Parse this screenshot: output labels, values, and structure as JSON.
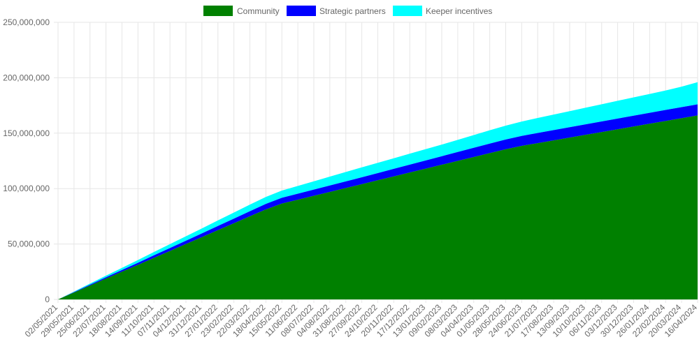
{
  "chart_data": {
    "type": "area",
    "stacked": true,
    "legend_position": "top-center",
    "grid": true,
    "ylim": [
      0,
      250000000
    ],
    "y_ticks": [
      "0",
      "50,000,000",
      "100,000,000",
      "150,000,000",
      "200,000,000",
      "250,000,000"
    ],
    "y_tick_values": [
      0,
      50000000,
      100000000,
      150000000,
      200000000,
      250000000
    ],
    "x_labels": [
      "02/05/2021",
      "29/05/2021",
      "25/06/2021",
      "22/07/2021",
      "18/08/2021",
      "14/09/2021",
      "11/10/2021",
      "07/11/2021",
      "04/12/2021",
      "31/12/2021",
      "27/01/2022",
      "23/02/2022",
      "22/03/2022",
      "18/04/2022",
      "15/05/2022",
      "11/06/2022",
      "08/07/2022",
      "04/08/2022",
      "31/08/2022",
      "27/09/2022",
      "24/10/2022",
      "20/11/2022",
      "17/12/2022",
      "13/01/2023",
      "09/02/2023",
      "08/03/2023",
      "04/04/2023",
      "01/05/2023",
      "28/05/2023",
      "24/06/2023",
      "21/07/2023",
      "17/08/2023",
      "13/09/2023",
      "10/10/2023",
      "06/11/2023",
      "03/12/2023",
      "30/12/2023",
      "26/01/2024",
      "22/02/2024",
      "20/03/2024",
      "16/04/2024"
    ],
    "series": [
      {
        "name": "Community",
        "color": "#008000",
        "values": [
          0,
          6200000,
          12500000,
          18800000,
          25000000,
          31200000,
          37500000,
          43700000,
          50000000,
          56200000,
          62500000,
          68700000,
          75000000,
          81200000,
          86500000,
          90000000,
          93500000,
          97000000,
          100500000,
          104000000,
          107500000,
          111000000,
          114500000,
          118000000,
          121500000,
          125000000,
          128500000,
          132000000,
          135500000,
          138500000,
          141000000,
          143500000,
          146000000,
          148500000,
          151000000,
          153500000,
          156000000,
          158500000,
          161000000,
          163500000,
          166000000
        ]
      },
      {
        "name": "Strategic partners",
        "color": "#0000ff",
        "values": [
          0,
          400000,
          800000,
          1200000,
          1500000,
          1900000,
          2300000,
          2700000,
          3000000,
          3400000,
          3800000,
          4200000,
          4600000,
          5000000,
          5200000,
          5400000,
          5600000,
          5800000,
          6000000,
          6200000,
          6500000,
          6800000,
          7100000,
          7400000,
          7700000,
          8000000,
          8300000,
          8600000,
          8800000,
          9000000,
          9200000,
          9300000,
          9400000,
          9500000,
          9600000,
          9700000,
          9800000,
          9900000,
          10000000,
          10000000,
          10000000
        ]
      },
      {
        "name": "Keeper incentives",
        "color": "#00ffff",
        "values": [
          0,
          500000,
          1000000,
          1500000,
          2000000,
          2500000,
          3000000,
          3500000,
          4000000,
          4500000,
          5000000,
          5500000,
          6000000,
          6300000,
          6500000,
          7000000,
          7500000,
          8000000,
          8500000,
          9000000,
          9300000,
          9600000,
          9900000,
          10200000,
          10500000,
          11000000,
          11500000,
          12000000,
          12500000,
          13000000,
          13500000,
          14000000,
          14500000,
          15000000,
          15500000,
          16000000,
          16500000,
          17000000,
          17500000,
          18500000,
          20000000
        ]
      }
    ]
  }
}
